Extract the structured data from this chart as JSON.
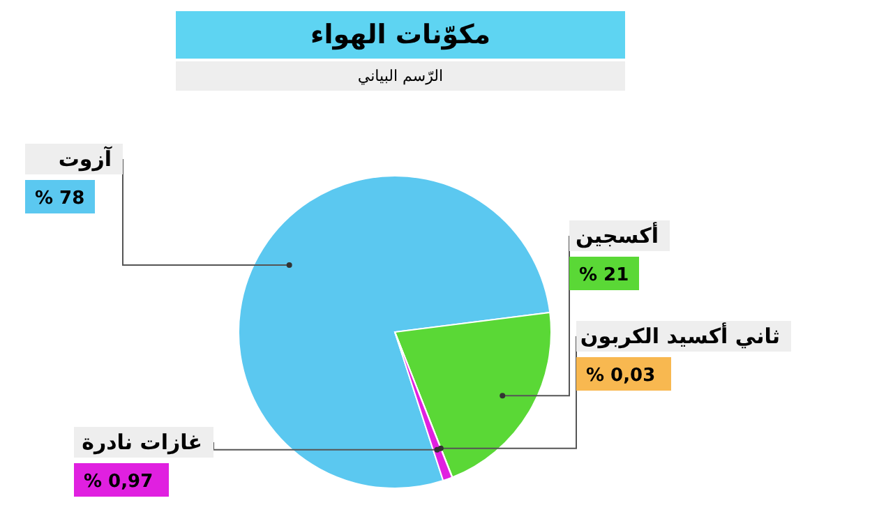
{
  "chart_data": {
    "type": "pie",
    "title": "مكوّنات الهواء",
    "subtitle": "الرّسم البياني",
    "categories": [
      "آزوت",
      "أكسجين",
      "ثاني أكسيد الكربون",
      "غازات نادرة"
    ],
    "values": [
      78,
      21,
      0.03,
      0.97
    ],
    "value_labels": [
      "% 78",
      "% 21",
      "% 0,03",
      "% 0,97"
    ],
    "colors": [
      "#5bc8f0",
      "#5ad836",
      "#f8b850",
      "#e020e0"
    ]
  }
}
